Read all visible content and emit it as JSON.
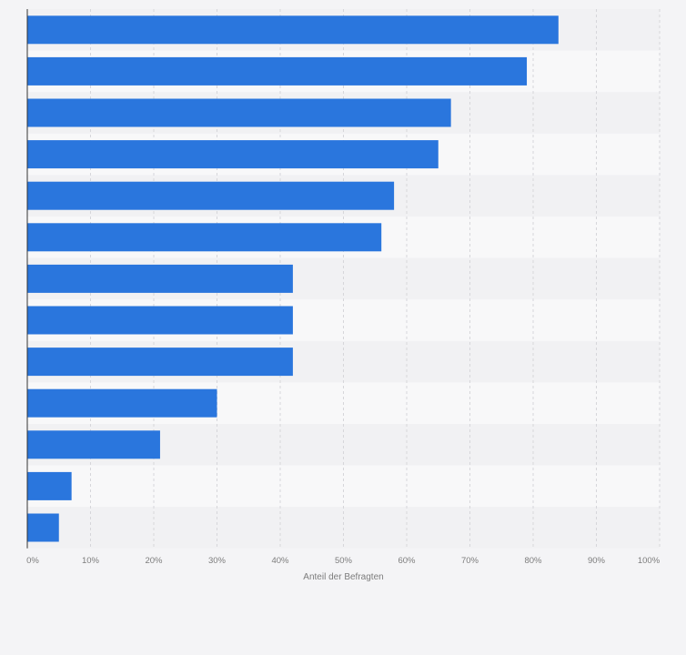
{
  "chart_data": {
    "type": "bar",
    "orientation": "horizontal",
    "categories": [
      "",
      "",
      "",
      "",
      "",
      "",
      "",
      "",
      "",
      "",
      "",
      "",
      ""
    ],
    "values": [
      84,
      79,
      67,
      65,
      58,
      56,
      42,
      42,
      42,
      30,
      21,
      7,
      5
    ],
    "xlabel": "Anteil der Befragten",
    "xlim": [
      0,
      100
    ],
    "x_ticks": [
      "0%",
      "10%",
      "20%",
      "30%",
      "40%",
      "50%",
      "60%",
      "70%",
      "80%",
      "90%",
      "100%"
    ],
    "grid": true,
    "legend": "none",
    "colors": {
      "bar": "#2a76dd",
      "band_light": "#f8f8f9",
      "band_dark": "#f1f1f3",
      "background": "#f4f4f6"
    }
  }
}
